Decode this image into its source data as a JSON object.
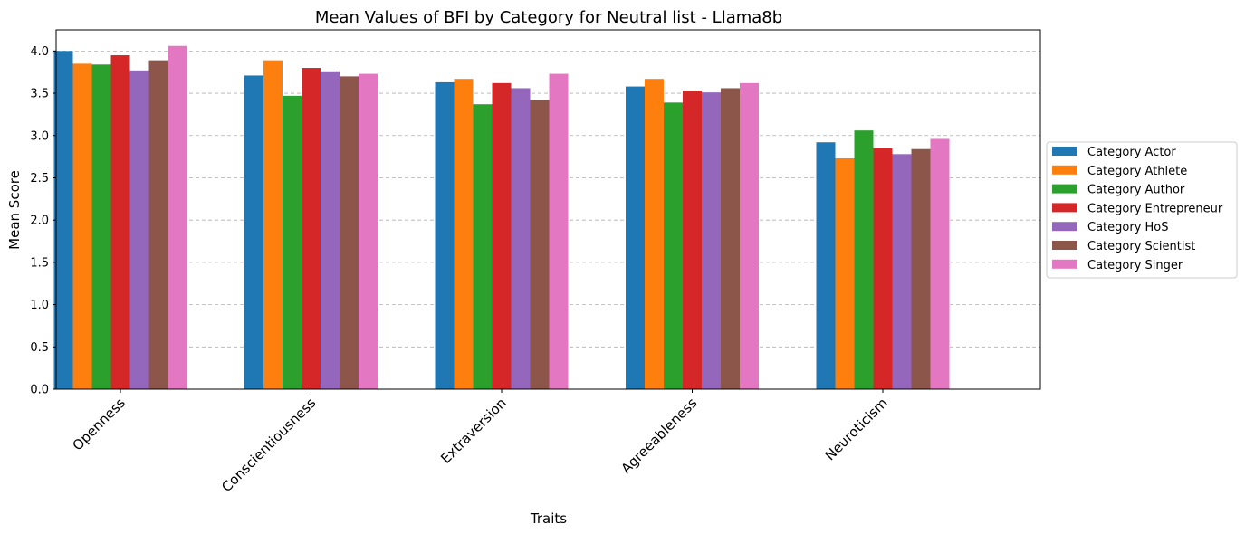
{
  "chart_data": {
    "type": "bar",
    "title": "Mean Values of BFI by Category for Neutral list - Llama8b",
    "xlabel": "Traits",
    "ylabel": "Mean Score",
    "ylim": [
      0,
      4.25
    ],
    "yticks": [
      "0.0",
      "0.5",
      "1.0",
      "1.5",
      "2.0",
      "2.5",
      "3.0",
      "3.5",
      "4.0"
    ],
    "grid": "horizontal dashed",
    "legend_position": "center-right outside",
    "categories": [
      "Openness",
      "Conscientiousness",
      "Extraversion",
      "Agreeableness",
      "Neuroticism"
    ],
    "series": [
      {
        "name": "Category Actor",
        "color": "#1f77b4",
        "values": [
          4.0,
          3.71,
          3.63,
          3.58,
          2.92
        ]
      },
      {
        "name": "Category Athlete",
        "color": "#ff7f0e",
        "values": [
          3.85,
          3.89,
          3.67,
          3.67,
          2.73
        ]
      },
      {
        "name": "Category Author",
        "color": "#2ca02c",
        "values": [
          3.84,
          3.47,
          3.37,
          3.39,
          3.06
        ]
      },
      {
        "name": "Category Entrepreneur",
        "color": "#d62728",
        "values": [
          3.95,
          3.8,
          3.62,
          3.53,
          2.85
        ]
      },
      {
        "name": "Category HoS",
        "color": "#9467bd",
        "values": [
          3.77,
          3.76,
          3.56,
          3.51,
          2.78
        ]
      },
      {
        "name": "Category Scientist",
        "color": "#8c564b",
        "values": [
          3.89,
          3.7,
          3.42,
          3.56,
          2.84
        ]
      },
      {
        "name": "Category Singer",
        "color": "#e377c2",
        "values": [
          4.06,
          3.73,
          3.73,
          3.62,
          2.96
        ]
      }
    ]
  }
}
